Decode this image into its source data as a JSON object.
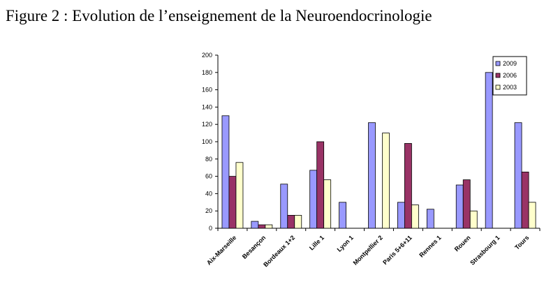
{
  "caption": "Figure 2 : Evolution de l’enseignement de la Neuroendocrinologie",
  "chart_data": {
    "type": "bar",
    "title": "",
    "xlabel": "",
    "ylabel": "",
    "ylim": [
      0,
      200
    ],
    "yticks": [
      0,
      20,
      40,
      60,
      80,
      100,
      120,
      140,
      160,
      180,
      200
    ],
    "grid": false,
    "legend_position": "top-right",
    "categories": [
      "Aix-Marseille",
      "Besançon",
      "Bordeaux 1+2",
      "Lille 1",
      "Lyon 1",
      "Montpellier 2",
      "Paris 5+6+11",
      "Rennes 1",
      "Rouen",
      "Strasbourg 1",
      "Tours"
    ],
    "series": [
      {
        "name": "2009",
        "color": "#9999ff",
        "values": [
          130,
          8,
          51,
          67,
          30,
          122,
          30,
          22,
          50,
          180,
          122
        ]
      },
      {
        "name": "2006",
        "color": "#993366",
        "values": [
          60,
          4,
          15,
          100,
          0,
          0,
          98,
          0,
          56,
          0,
          65
        ]
      },
      {
        "name": "2003",
        "color": "#ffffcc",
        "values": [
          76,
          4,
          15,
          56,
          0,
          110,
          27,
          0,
          20,
          0,
          30
        ]
      }
    ]
  }
}
